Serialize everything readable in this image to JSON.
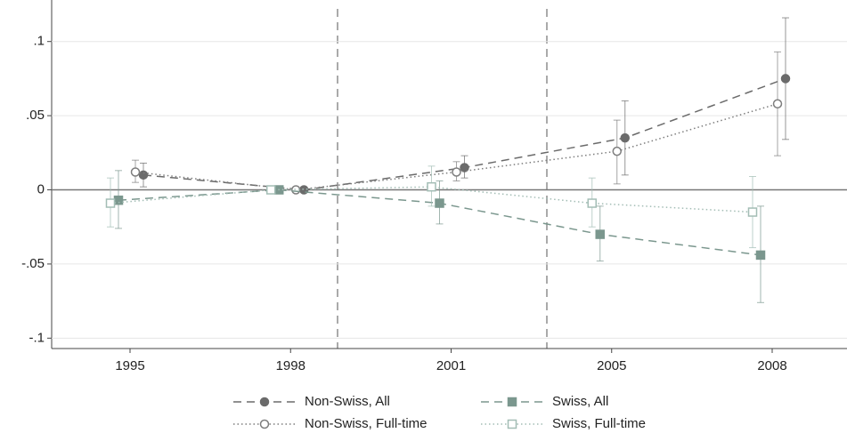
{
  "chart_data": {
    "type": "line",
    "categories": [
      "1995",
      "1998",
      "2001",
      "2005",
      "2008"
    ],
    "ylim": [
      -0.107,
      0.128
    ],
    "yticks": [
      {
        "value": -0.1,
        "label": "-.1"
      },
      {
        "value": -0.05,
        "label": "-.05"
      },
      0,
      {
        "value": 0.05,
        "label": ".05"
      },
      {
        "value": 0.1,
        "label": ".1"
      }
    ],
    "grid": true,
    "legend": "bottom",
    "series": [
      {
        "name": "Non-Swiss, All",
        "color": "#6b6b6b",
        "marker": "circle",
        "filled": true,
        "dash": "dashed",
        "values": [
          0.01,
          0,
          0.015,
          0.035,
          0.075
        ],
        "lower": [
          0.002,
          null,
          0.008,
          0.01,
          0.034
        ],
        "upper": [
          0.018,
          null,
          0.023,
          0.06,
          0.116
        ]
      },
      {
        "name": "Non-Swiss, Full-time",
        "color": "#7d7d7d",
        "marker": "circle",
        "filled": false,
        "dash": "dotted",
        "values": [
          0.012,
          0,
          0.012,
          0.026,
          0.058
        ],
        "lower": [
          0.005,
          null,
          0.006,
          0.004,
          0.023
        ],
        "upper": [
          0.02,
          null,
          0.019,
          0.047,
          0.093
        ]
      },
      {
        "name": "Swiss, All",
        "color": "#7b978e",
        "marker": "square",
        "filled": true,
        "dash": "dashed",
        "values": [
          -0.007,
          0,
          -0.009,
          -0.03,
          -0.044
        ],
        "lower": [
          -0.026,
          null,
          -0.023,
          -0.048,
          -0.076
        ],
        "upper": [
          0.013,
          null,
          0.006,
          -0.011,
          -0.011
        ]
      },
      {
        "name": "Swiss, Full-time",
        "color": "#a3bdb5",
        "marker": "square",
        "filled": false,
        "dash": "dotted",
        "values": [
          -0.009,
          0,
          0.002,
          -0.009,
          -0.015
        ],
        "lower": [
          -0.025,
          null,
          -0.011,
          -0.025,
          -0.039
        ],
        "upper": [
          0.008,
          null,
          0.016,
          0.008,
          0.009
        ]
      }
    ]
  }
}
